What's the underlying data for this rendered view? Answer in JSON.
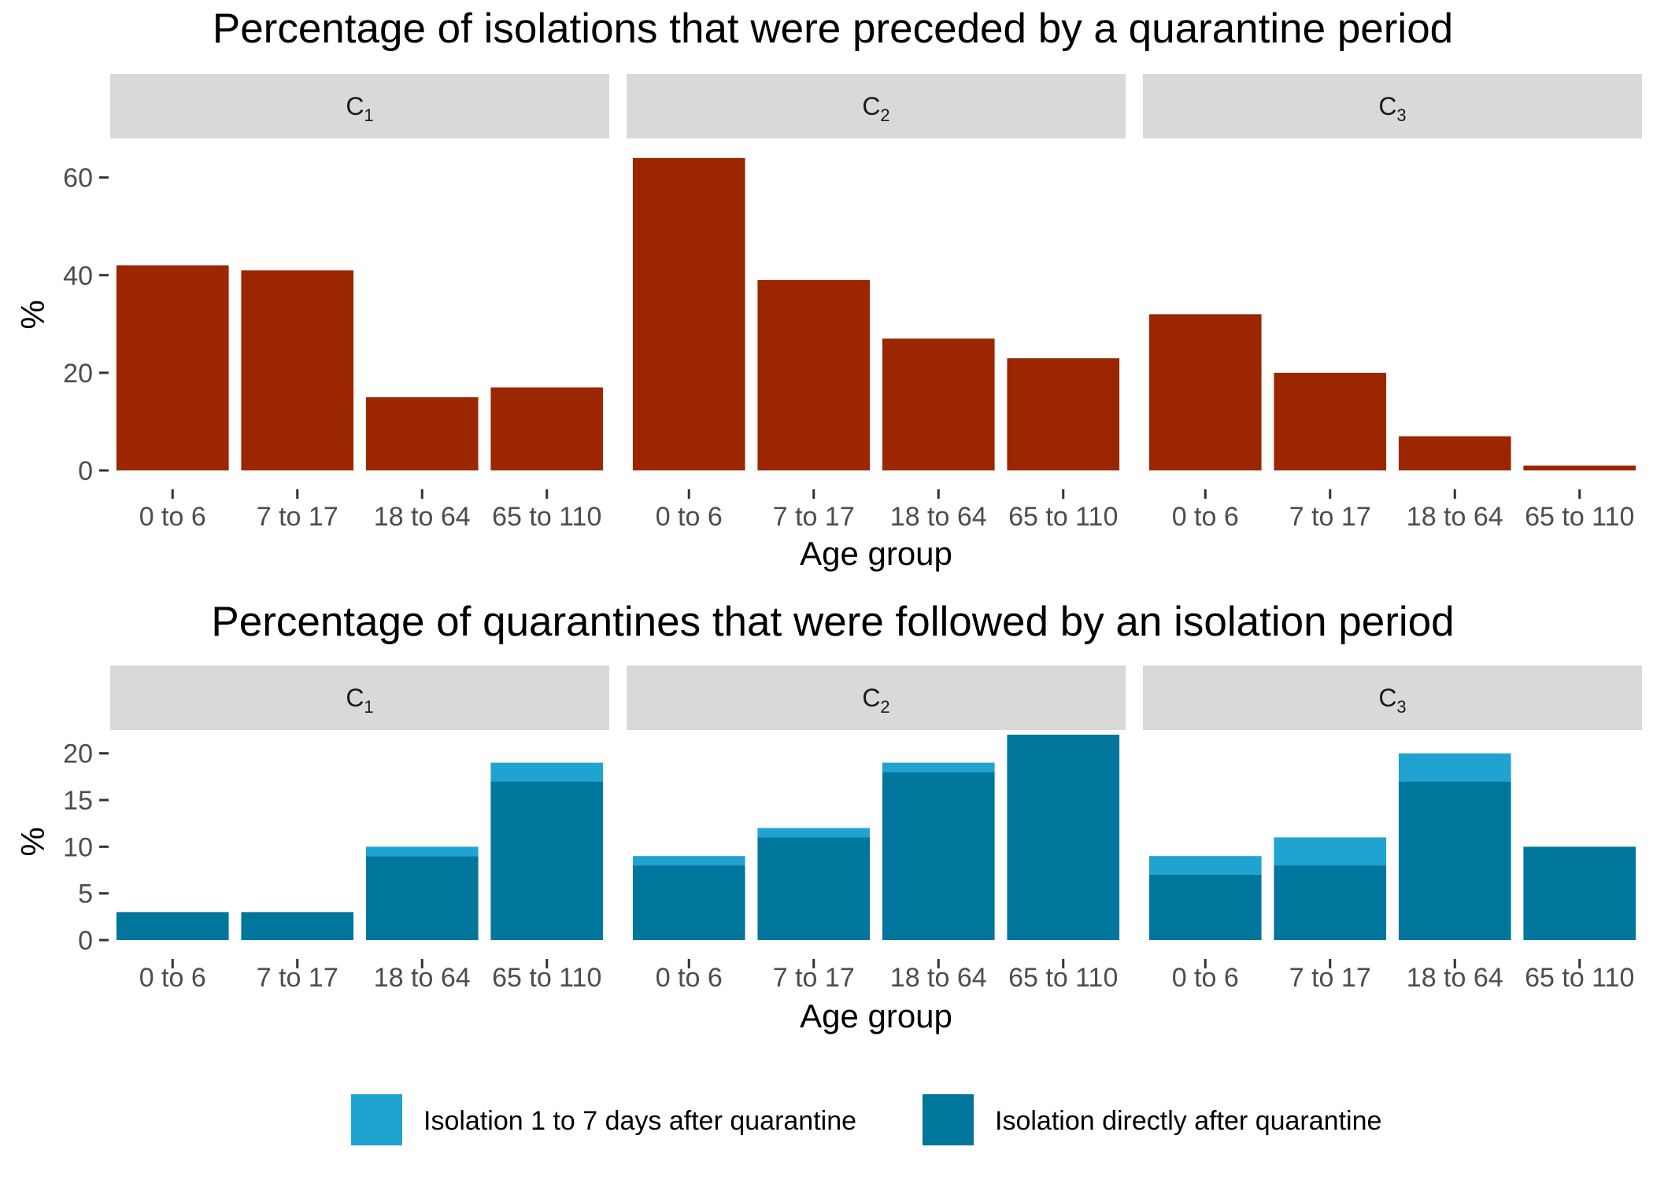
{
  "legend": {
    "items": [
      {
        "label": "Isolation 1 to 7 days after quarantine",
        "color": "#1fa3d1"
      },
      {
        "label": "Isolation directly after quarantine",
        "color": "#00769d"
      }
    ]
  },
  "chart_data": [
    {
      "type": "bar",
      "title": "Percentage of isolations that were preceded by a quarantine period",
      "xlabel": "Age group",
      "ylabel": "%",
      "ylim": [
        0,
        68
      ],
      "yticks": [
        0,
        20,
        40,
        60
      ],
      "categories": [
        "0 to 6",
        "7 to 17",
        "18 to 64",
        "65 to 110"
      ],
      "bar_color": "#9b2600",
      "facets": [
        {
          "base": "C",
          "sub": "1",
          "values": [
            42,
            41,
            15,
            17
          ]
        },
        {
          "base": "C",
          "sub": "2",
          "values": [
            64,
            39,
            27,
            23
          ]
        },
        {
          "base": "C",
          "sub": "3",
          "values": [
            32,
            20,
            7,
            1
          ]
        }
      ]
    },
    {
      "type": "bar",
      "stacked": true,
      "title": "Percentage of quarantines that were followed by an isolation period",
      "xlabel": "Age group",
      "ylabel": "%",
      "ylim": [
        0,
        22.5
      ],
      "yticks": [
        0,
        5,
        10,
        15,
        20
      ],
      "categories": [
        "0 to 6",
        "7 to 17",
        "18 to 64",
        "65 to 110"
      ],
      "facets": [
        {
          "base": "C",
          "sub": "1",
          "series": [
            {
              "name": "Isolation directly after quarantine",
              "values": [
                3,
                3,
                9,
                17
              ]
            },
            {
              "name": "Isolation 1 to 7 days after quarantine",
              "values": [
                0,
                0,
                1,
                2
              ]
            }
          ]
        },
        {
          "base": "C",
          "sub": "2",
          "series": [
            {
              "name": "Isolation directly after quarantine",
              "values": [
                8,
                11,
                18,
                22
              ]
            },
            {
              "name": "Isolation 1 to 7 days after quarantine",
              "values": [
                1,
                1,
                1,
                0
              ]
            }
          ]
        },
        {
          "base": "C",
          "sub": "3",
          "series": [
            {
              "name": "Isolation directly after quarantine",
              "values": [
                7,
                8,
                17,
                10
              ]
            },
            {
              "name": "Isolation 1 to 7 days after quarantine",
              "values": [
                2,
                3,
                3,
                0
              ]
            }
          ]
        }
      ]
    }
  ]
}
